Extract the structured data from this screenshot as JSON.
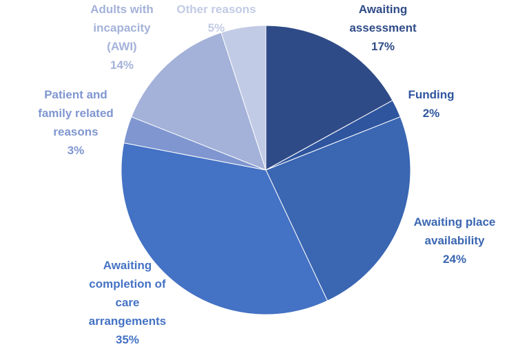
{
  "chart_data": {
    "type": "pie",
    "categories": [
      "Awaiting assessment",
      "Funding",
      "Awaiting place availability",
      "Awaiting completion of care arrangements",
      "Patient and family related reasons",
      "Adults with incapacity (AWI)",
      "Other reasons"
    ],
    "values": [
      17,
      2,
      24,
      35,
      3,
      14,
      5
    ],
    "value_labels": [
      "17%",
      "2%",
      "24%",
      "35%",
      "3%",
      "14%",
      "5%"
    ],
    "colors": [
      "#2f4b87",
      "#2e559e",
      "#3a66b2",
      "#4472c4",
      "#7f96d0",
      "#a4b2d9",
      "#c2cbe5"
    ]
  }
}
